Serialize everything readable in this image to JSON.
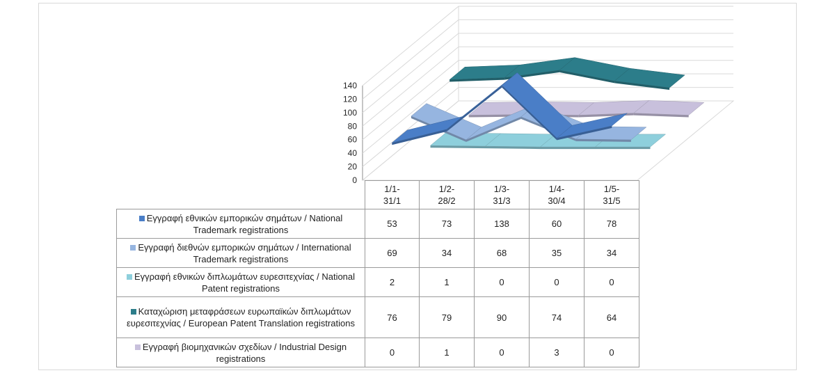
{
  "colors": {
    "grid": "#d9d9d9",
    "axis": "#8c8c8c",
    "text": "#222222"
  },
  "chart_data": {
    "type": "line",
    "style": "3d",
    "categories": [
      "1/1-\n31/1",
      "1/2-\n28/2",
      "1/3-\n31/3",
      "1/4-\n30/4",
      "1/5-\n31/5"
    ],
    "y_ticks": [
      0,
      20,
      40,
      60,
      80,
      100,
      120,
      140
    ],
    "ylim": [
      0,
      140
    ],
    "grid": true,
    "legend": "data-table",
    "series": [
      {
        "name": "Εγγραφή εθνικών εμπορικών σημάτων / National Trademark registrations",
        "color": "#4a7ec7",
        "values": [
          53,
          73,
          138,
          60,
          78
        ]
      },
      {
        "name": "Εγγραφή διεθνών εμπορικών σημάτων / International Trademark registrations",
        "color": "#96b5e0",
        "values": [
          69,
          34,
          68,
          35,
          34
        ]
      },
      {
        "name": "Εγγραφή εθνικών διπλωμάτων ευρεσιτεχνίας / National Patent registrations",
        "color": "#8ecfdc",
        "values": [
          2,
          1,
          0,
          0,
          0
        ]
      },
      {
        "name": "Καταχώριση μεταφράσεων ευρωπαϊκών διπλωμάτων ευρεσιτεχνίας / European Patent Translation registrations",
        "color": "#2c7d8a",
        "values": [
          76,
          79,
          90,
          74,
          64
        ]
      },
      {
        "name": "Εγγραφή βιομηχανικών σχεδίων / Industrial Design registrations",
        "color": "#c8c0dc",
        "values": [
          0,
          1,
          0,
          3,
          0
        ]
      }
    ]
  }
}
